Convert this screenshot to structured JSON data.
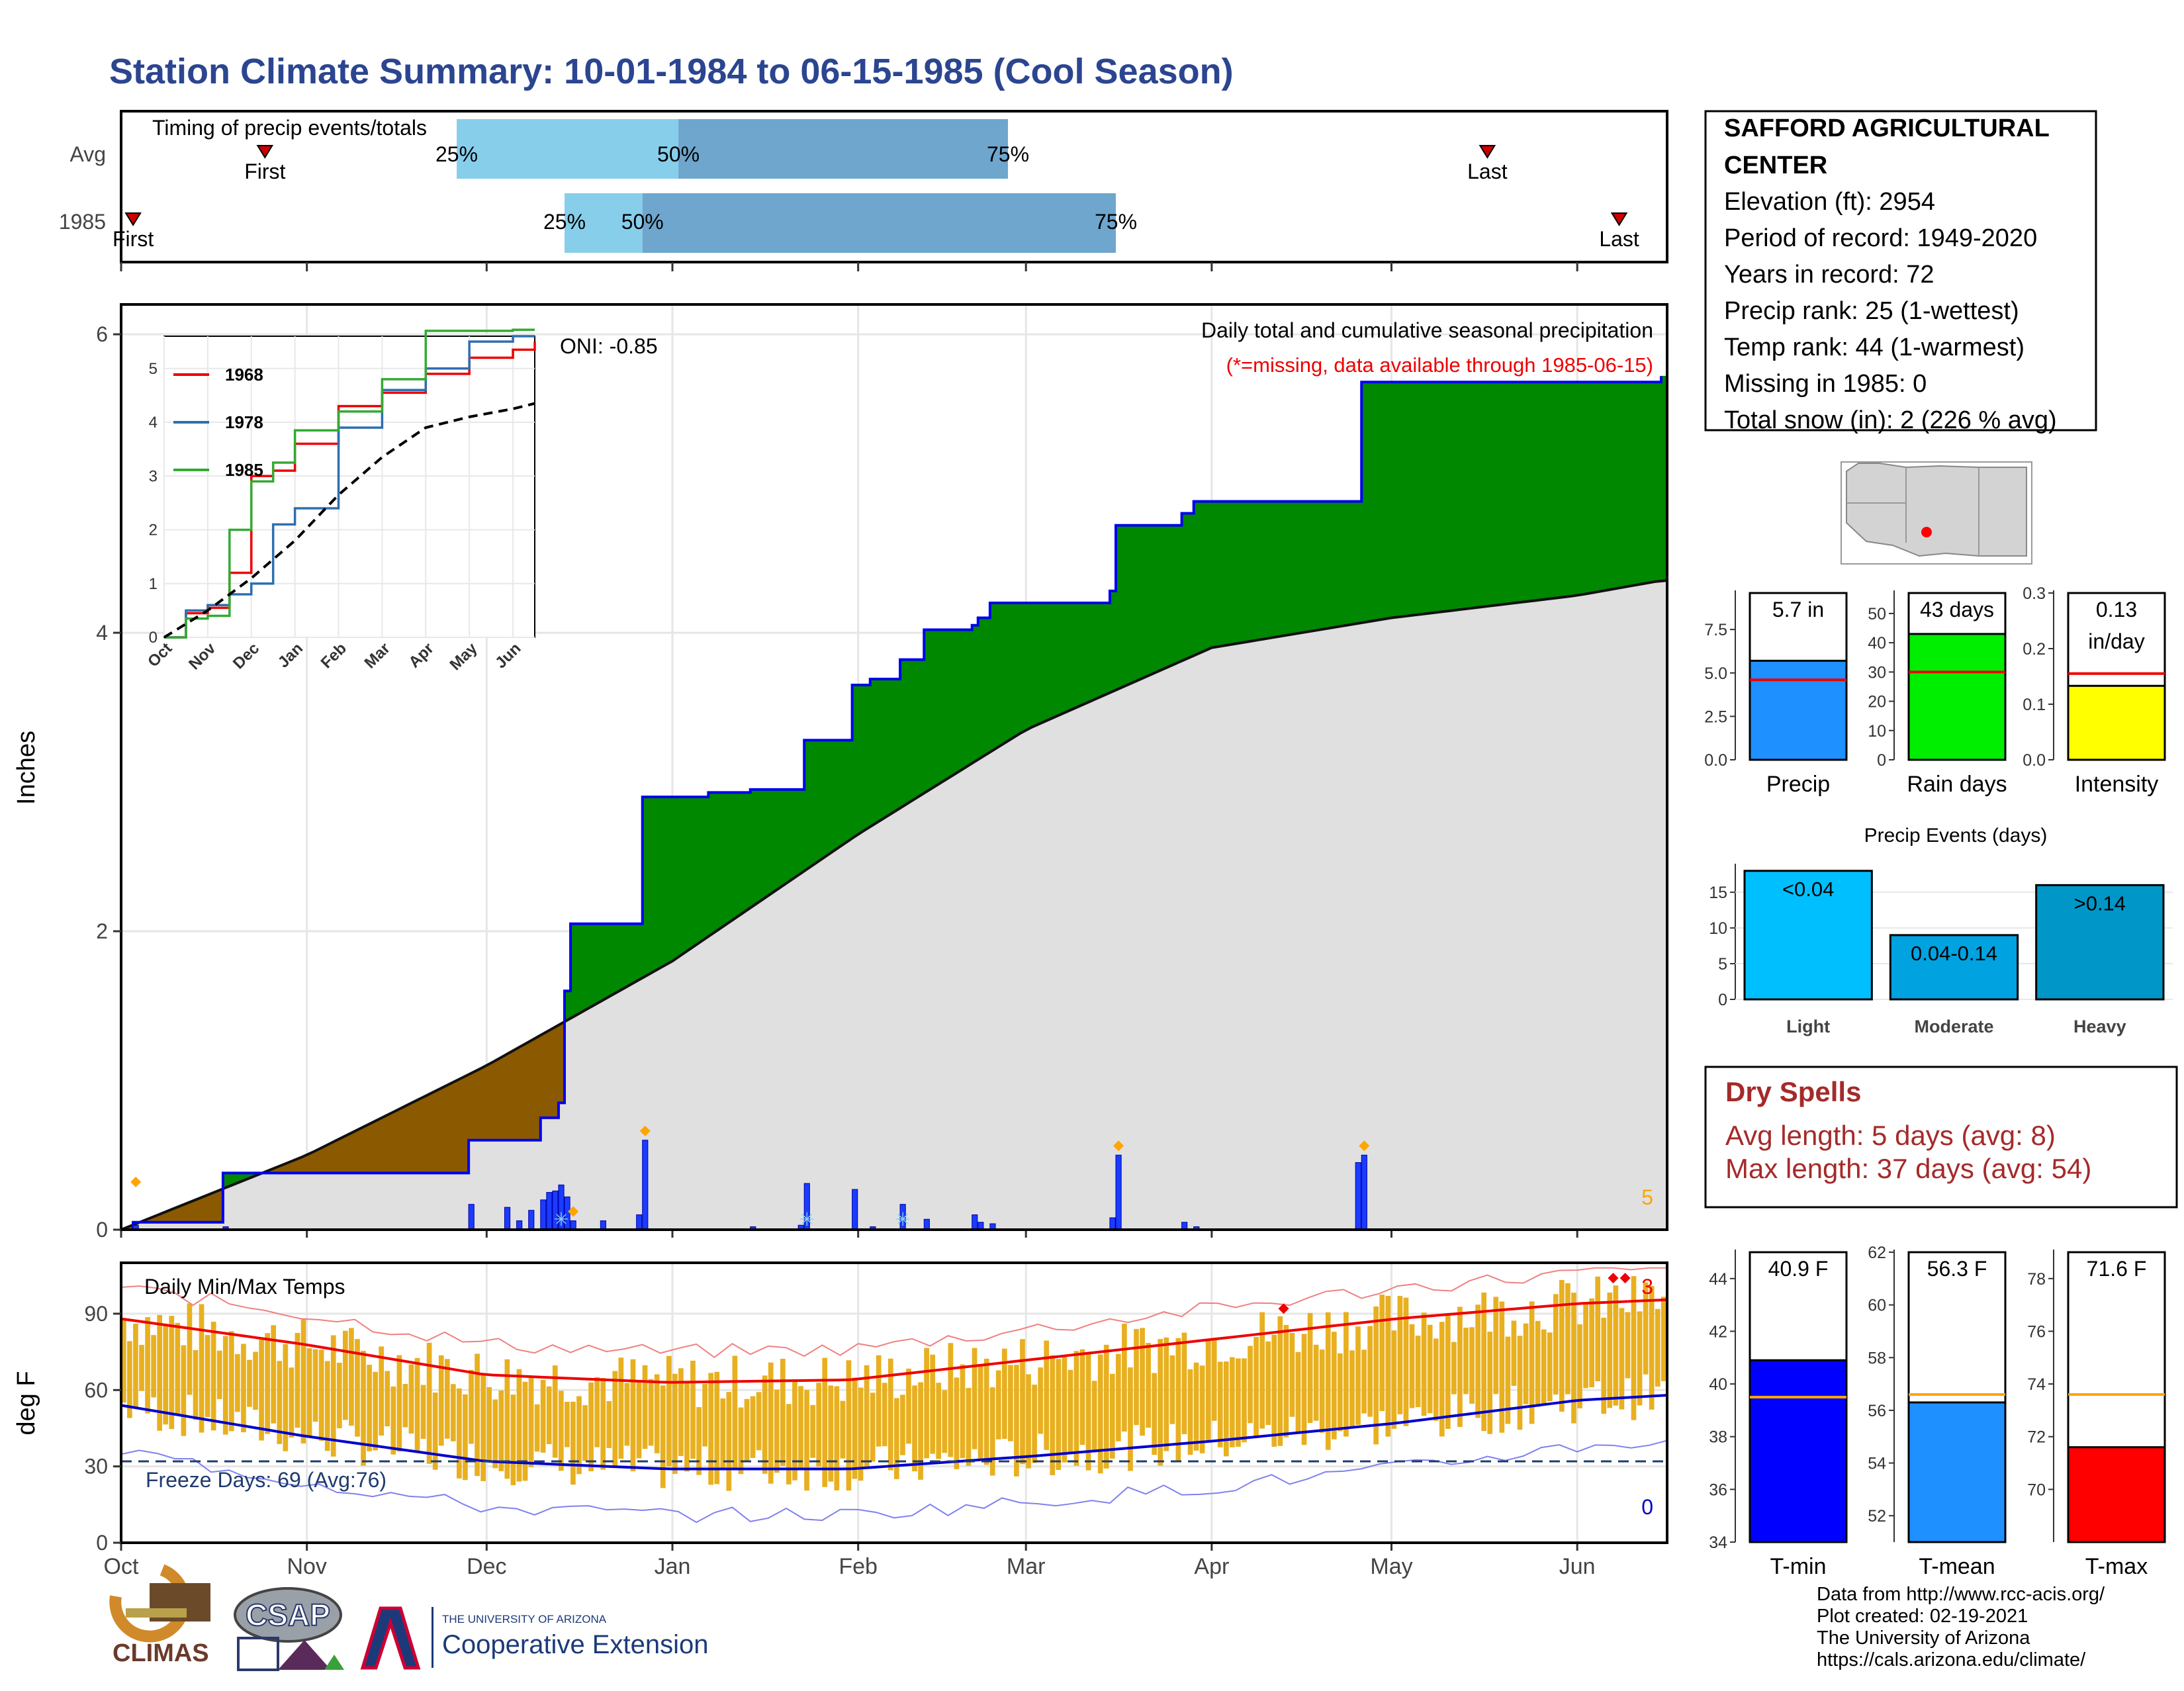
{
  "title": "Station Climate Summary: 10-01-1984 to 06-15-1985 (Cool Season)",
  "colors": {
    "title": "#2b4590",
    "cum_this_year": "#0000ee",
    "above_avg": "#008800",
    "below_avg": "#8b5a00",
    "avg_fill": "#e0e0e0",
    "daily_bar": "#1a3cff",
    "temp_bar": "#e8b020",
    "tmax_avg": "#ee0000",
    "tmin_avg": "#0000cc",
    "freeze_line": "#1f3b6e",
    "dry_spell": "#a52a2a"
  },
  "month_labels": [
    "Oct",
    "Nov",
    "Dec",
    "Jan",
    "Feb",
    "Mar",
    "Apr",
    "May",
    "Jun"
  ],
  "timing": {
    "title": "Timing of precip events/totals",
    "rows": [
      "Avg",
      "1985"
    ],
    "avg": {
      "first_label": "First",
      "last_label": "Last",
      "first_date": "1984-10-25",
      "last_date": "1985-05-17",
      "p25": "1984-11-26",
      "p50": "1985-01-02",
      "p75": "1985-02-26"
    },
    "y1985": {
      "first_label": "First",
      "last_label": "Last",
      "first_date": "1984-10-03",
      "last_date": "1985-06-08",
      "p25": "1984-12-14",
      "p50": "1984-12-27",
      "p75": "1985-03-16"
    },
    "pct_labels": [
      "25%",
      "50%",
      "75%"
    ]
  },
  "station": {
    "name": "SAFFORD AGRICULTURAL CENTER",
    "lines": [
      "Elevation (ft): 2954",
      "Period of record: 1949-2020",
      "Years in record: 72",
      "Precip rank: 25 (1-wettest)",
      "Temp rank: 44 (1-warmest)",
      "Missing in 1985: 0",
      "Total snow (in): 2 (226 % avg)"
    ]
  },
  "precip_panel": {
    "ylabel": "Inches",
    "y_ticks": [
      "0",
      "2",
      "4",
      "6"
    ],
    "oni": "ONI: -0.85",
    "subtitle": "Daily total and cumulative seasonal precipitation",
    "missing_note": "(*=missing, data available through 1985-06-15)",
    "corner_value": "5"
  },
  "inset": {
    "y_ticks": [
      "0",
      "1",
      "2",
      "3",
      "4",
      "5"
    ],
    "x_ticks": [
      "Oct",
      "Nov",
      "Dec",
      "Jan",
      "Feb",
      "Mar",
      "Apr",
      "May",
      "Jun"
    ],
    "legend": [
      {
        "name": "1968",
        "color": "#ee0000"
      },
      {
        "name": "1978",
        "color": "#2e6fb0"
      },
      {
        "name": "1985",
        "color": "#33aa33"
      }
    ]
  },
  "summary_bars": {
    "precip": {
      "label": "Precip",
      "value_text": "5.7 in",
      "value": 5.7,
      "avg": 4.6,
      "y_ticks": [
        "0.0",
        "2.5",
        "5.0",
        "7.5"
      ],
      "ymax": 9.6,
      "color": "#1e90ff"
    },
    "rain_days": {
      "label": "Rain days",
      "value_text": "43 days",
      "value": 43,
      "avg": 30,
      "y_ticks": [
        "0",
        "10",
        "20",
        "30",
        "40",
        "50"
      ],
      "ymax": 57,
      "color": "#00ee00"
    },
    "intensity": {
      "label": "Intensity",
      "value_text": "0.13",
      "value_text2": "in/day",
      "value": 0.133,
      "avg": 0.155,
      "y_ticks": [
        "0.0",
        "0.1",
        "0.2",
        "0.3"
      ],
      "ymax": 0.3,
      "color": "#ffff00"
    }
  },
  "precip_events": {
    "title": "Precip Events (days)",
    "y_ticks": [
      "0",
      "5",
      "10",
      "15"
    ],
    "bars": [
      {
        "cat": "Light",
        "label": "<0.04",
        "value": 18,
        "color": "#00bfff"
      },
      {
        "cat": "Moderate",
        "label": "0.04-0.14",
        "value": 9,
        "color": "#00a2e0"
      },
      {
        "cat": "Heavy",
        "label": ">0.14",
        "value": 16,
        "color": "#0096c8"
      }
    ]
  },
  "dry_spells": {
    "title": "Dry Spells",
    "avg_line": "Avg length: 5 days (avg: 8)",
    "max_line": "Max length: 37 days (avg: 54)"
  },
  "temp_panel": {
    "title": "Daily Min/Max Temps",
    "ylabel": "deg F",
    "y_ticks": [
      "0",
      "30",
      "60",
      "90"
    ],
    "freeze_text": "Freeze Days: 69 (Avg:76)",
    "record_high_count": "3",
    "record_low_count": "0"
  },
  "temp_bars": {
    "tmin": {
      "label": "T-min",
      "value_text": "40.9 F",
      "value": 40.9,
      "avg": 39.5,
      "ymin": 34,
      "ymax": 45,
      "y_ticks": [
        "34",
        "36",
        "38",
        "40",
        "42",
        "44"
      ],
      "color": "#0000ff"
    },
    "tmean": {
      "label": "T-mean",
      "value_text": "56.3 F",
      "value": 56.3,
      "avg": 56.6,
      "ymin": 51,
      "ymax": 62,
      "y_ticks": [
        "52",
        "54",
        "56",
        "58",
        "60",
        "62"
      ],
      "color": "#1e90ff"
    },
    "tmax": {
      "label": "T-max",
      "value_text": "71.6 F",
      "value": 71.6,
      "avg": 73.6,
      "ymin": 68,
      "ymax": 79,
      "y_ticks": [
        "70",
        "72",
        "74",
        "76",
        "78"
      ],
      "color": "#ff0000"
    }
  },
  "footer": {
    "credits": [
      "Data from http://www.rcc-acis.org/",
      "Plot created: 02-19-2021",
      "The University of Arizona",
      "https://cals.arizona.edu/climate/"
    ],
    "climas": "CLIMAS",
    "csap": "CSAP",
    "ua_small": "THE UNIVERSITY OF ARIZONA",
    "ua_big": "Cooperative Extension"
  },
  "chart_data": [
    {
      "type": "area",
      "title": "Daily total and cumulative seasonal precipitation",
      "ylabel": "Inches",
      "ylim": [
        0,
        6.2
      ],
      "series": [
        {
          "name": "",
          "kind": "cumulative_1985_steps",
          "x": [
            "1984-10-01",
            "1984-10-03",
            "1984-10-18",
            "1984-11-28",
            "1984-12-10",
            "1984-12-13",
            "1984-12-14",
            "1984-12-15",
            "1984-12-27",
            "1985-01-07",
            "1985-01-14",
            "1985-01-23",
            "1985-01-31",
            "1985-02-03",
            "1985-02-08",
            "1985-02-12",
            "1985-02-20",
            "1985-02-21",
            "1985-02-23",
            "1985-03-15",
            "1985-03-16",
            "1985-03-27",
            "1985-03-29",
            "1985-04-26",
            "1985-06-15"
          ],
          "values": [
            0,
            0.05,
            0.38,
            0.6,
            0.75,
            0.85,
            1.6,
            2.05,
            2.9,
            2.93,
            2.95,
            3.28,
            3.65,
            3.69,
            3.82,
            4.02,
            4.05,
            4.1,
            4.2,
            4.28,
            4.72,
            4.8,
            4.88,
            5.68,
            5.72
          ]
        },
        {
          "name": "",
          "kind": "average_cumulative",
          "x": [
            "1984-10-01",
            "1984-11-01",
            "1984-12-01",
            "1985-01-01",
            "1985-02-01",
            "1985-03-01",
            "1985-04-01",
            "1985-05-01",
            "1985-06-01",
            "1985-06-15"
          ],
          "values": [
            0,
            0.5,
            1.1,
            1.8,
            2.65,
            3.35,
            3.9,
            4.1,
            4.25,
            4.35
          ]
        },
        {
          "name": "",
          "kind": "daily_precip",
          "x": [
            "1984-10-03",
            "1984-10-18",
            "1984-11-28",
            "1984-12-04",
            "1984-12-06",
            "1984-12-08",
            "1984-12-10",
            "1984-12-11",
            "1984-12-12",
            "1984-12-13",
            "1984-12-14",
            "1984-12-15",
            "1984-12-20",
            "1984-12-26",
            "1984-12-27",
            "1985-01-14",
            "1985-01-22",
            "1985-01-23",
            "1985-01-31",
            "1985-02-03",
            "1985-02-08",
            "1985-02-12",
            "1985-02-20",
            "1985-02-21",
            "1985-02-23",
            "1985-03-15",
            "1985-03-16",
            "1985-03-27",
            "1985-03-29",
            "1985-04-25",
            "1985-04-26"
          ],
          "values": [
            0.03,
            0.02,
            0.17,
            0.15,
            0.06,
            0.13,
            0.2,
            0.25,
            0.26,
            0.3,
            0.22,
            0.06,
            0.06,
            0.1,
            0.6,
            0.02,
            0.03,
            0.31,
            0.27,
            0.02,
            0.17,
            0.07,
            0.1,
            0.05,
            0.04,
            0.08,
            0.5,
            0.05,
            0.02,
            0.45,
            0.5
          ]
        }
      ]
    },
    {
      "type": "line",
      "title": "",
      "xlim": [
        "Oct",
        "Jun"
      ],
      "ylim": [
        0,
        5.6
      ],
      "series": [
        {
          "name": "1968",
          "x": [
            0,
            0.5,
            1,
            1.5,
            2,
            2.5,
            3,
            4,
            5,
            6,
            7,
            8,
            8.5
          ],
          "values": [
            0,
            0.45,
            0.55,
            1.2,
            3.0,
            3.1,
            3.6,
            4.3,
            4.55,
            4.9,
            5.2,
            5.35,
            5.5
          ]
        },
        {
          "name": "1978",
          "x": [
            0,
            0.5,
            1,
            1.5,
            2,
            2.5,
            3,
            4,
            5,
            6,
            7,
            8,
            8.5
          ],
          "values": [
            0,
            0.5,
            0.6,
            0.8,
            1.0,
            2.1,
            2.4,
            3.9,
            4.6,
            5.0,
            5.5,
            5.6,
            5.6
          ]
        },
        {
          "name": "1985",
          "x": [
            0,
            0.5,
            1,
            1.5,
            2,
            2.5,
            3,
            4,
            5,
            6,
            7,
            8,
            8.5
          ],
          "values": [
            0,
            0.35,
            0.4,
            2.0,
            2.9,
            3.25,
            3.85,
            4.2,
            4.8,
            5.7,
            5.7,
            5.72,
            5.72
          ]
        },
        {
          "name": "",
          "kind": "average",
          "x": [
            0,
            1,
            2,
            3,
            4,
            5,
            6,
            7,
            8,
            8.5
          ],
          "values": [
            0,
            0.5,
            1.1,
            1.8,
            2.65,
            3.35,
            3.9,
            4.1,
            4.25,
            4.35
          ]
        }
      ]
    },
    {
      "type": "bar",
      "title": "Daily Min/Max Temps",
      "ylabel": "deg F",
      "ylim": [
        0,
        110
      ],
      "series": [
        {
          "name": "",
          "kind": "avg_tmax",
          "x": [
            "Oct",
            "Nov",
            "Dec",
            "Jan",
            "Feb",
            "Mar",
            "Apr",
            "May",
            "Jun",
            "Jun 15"
          ],
          "values": [
            88,
            78,
            66,
            63,
            64,
            72,
            80,
            88,
            94,
            97
          ]
        },
        {
          "name": "",
          "kind": "avg_tmin",
          "x": [
            "Oct",
            "Nov",
            "Dec",
            "Jan",
            "Feb",
            "Mar",
            "Apr",
            "May",
            "Jun",
            "Jun 15"
          ],
          "values": [
            54,
            42,
            32,
            29,
            29,
            34,
            40,
            47,
            56,
            60
          ]
        }
      ]
    }
  ]
}
